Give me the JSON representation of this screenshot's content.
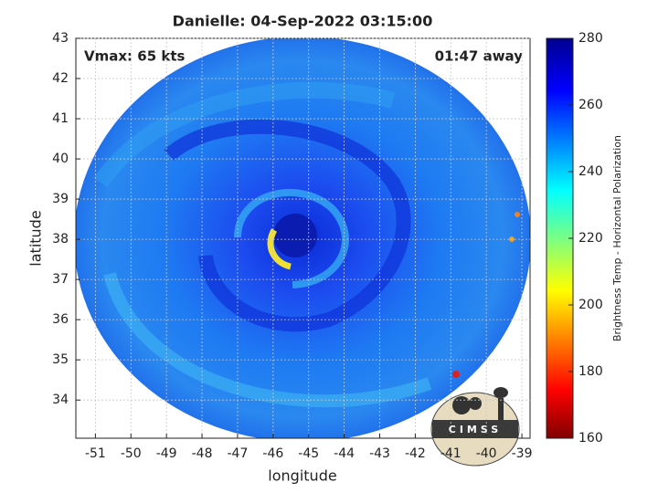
{
  "chart_data": {
    "type": "image",
    "title": "Danielle: 04-Sep-2022 03:15:00",
    "annotations": [
      "Vmax: 65 kts",
      "01:47 away"
    ],
    "xlabel": "longitude",
    "ylabel": "latitude",
    "xlim": [
      -51.55,
      -38.77
    ],
    "xticks": [
      -51,
      -50,
      -49,
      -48,
      -47,
      -46,
      -45,
      -44,
      -43,
      -42,
      -41,
      -40,
      -39
    ],
    "ylim": [
      33.05,
      43
    ],
    "yticks": [
      34,
      35,
      36,
      37,
      38,
      39,
      40,
      41,
      42,
      43
    ],
    "grid": true,
    "colorbar": {
      "label": "Brightness Temp - Horizontal Polarization",
      "lim": [
        160,
        280
      ],
      "ticks": [
        160,
        180,
        200,
        220,
        240,
        260,
        280
      ]
    },
    "logo_text": "CIMSS"
  }
}
